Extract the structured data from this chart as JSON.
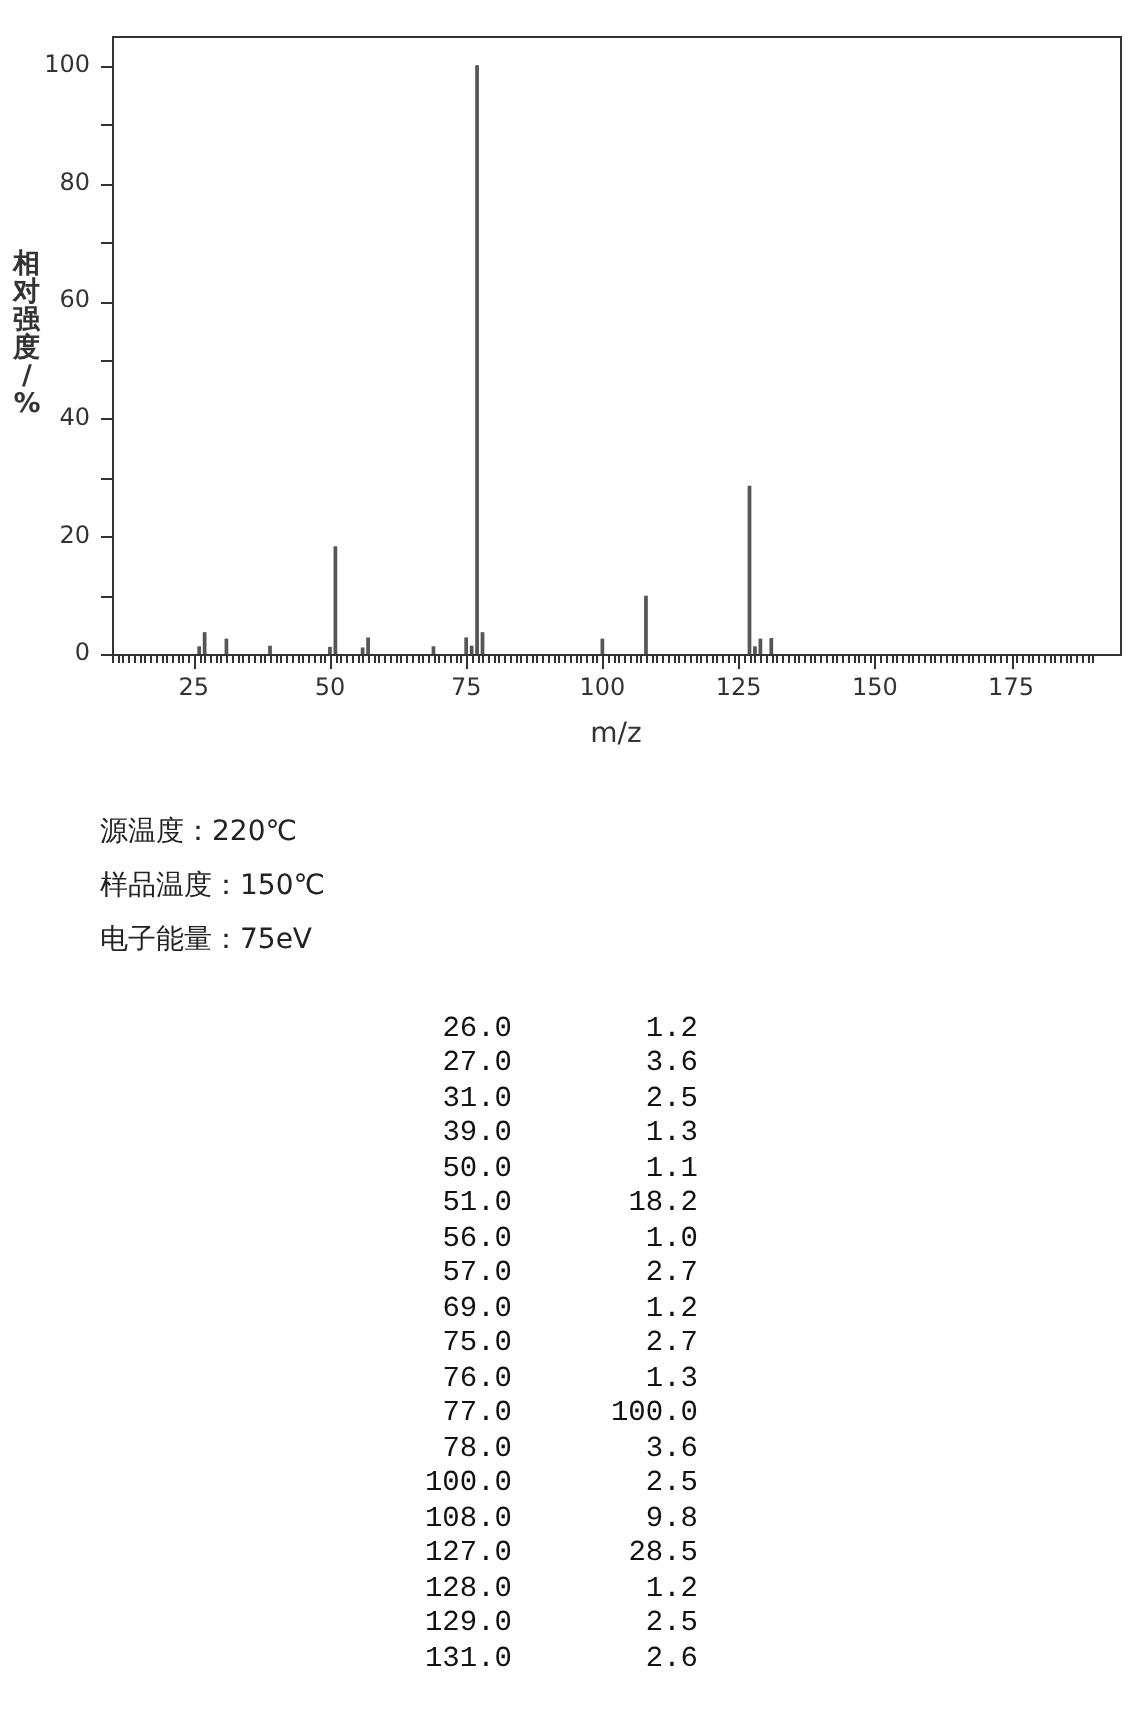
{
  "chart_data": [
    {
      "type": "bar",
      "xlabel": "m/z",
      "ylabel": "相对强度/%",
      "x": [
        26,
        27,
        31,
        39,
        50,
        51,
        56,
        57,
        69,
        75,
        76,
        77,
        78,
        100,
        108,
        127,
        128,
        129,
        131
      ],
      "values": [
        1.2,
        3.6,
        2.5,
        1.3,
        1.1,
        18.2,
        1.0,
        2.7,
        1.2,
        2.7,
        1.3,
        100.0,
        3.6,
        2.5,
        9.8,
        28.5,
        1.2,
        2.5,
        2.6
      ],
      "color": "#555555",
      "xlim": [
        10,
        195
      ],
      "xticks": [
        {
          "value": 10,
          "label": null
        },
        {
          "value": 11,
          "label": null
        },
        {
          "value": 12,
          "label": null
        },
        {
          "value": 13,
          "label": null
        },
        {
          "value": 14,
          "label": null
        },
        {
          "value": 15,
          "label": null
        },
        {
          "value": 16,
          "label": null
        },
        {
          "value": 17,
          "label": null
        },
        {
          "value": 18,
          "label": null
        },
        {
          "value": 19,
          "label": null
        },
        {
          "value": 20,
          "label": null
        },
        {
          "value": 21,
          "label": null
        },
        {
          "value": 22,
          "label": null
        },
        {
          "value": 23,
          "label": null
        },
        {
          "value": 24,
          "label": null
        },
        25,
        {
          "value": 26,
          "label": null
        },
        {
          "value": 27,
          "label": null
        },
        {
          "value": 28,
          "label": null
        },
        {
          "value": 29,
          "label": null
        },
        {
          "value": 30,
          "label": null
        },
        {
          "value": 31,
          "label": null
        },
        {
          "value": 32,
          "label": null
        },
        {
          "value": 33,
          "label": null
        },
        {
          "value": 34,
          "label": null
        },
        {
          "value": 35,
          "label": null
        },
        {
          "value": 36,
          "label": null
        },
        {
          "value": 37,
          "label": null
        },
        {
          "value": 38,
          "label": null
        },
        {
          "value": 39,
          "label": null
        },
        {
          "value": 40,
          "label": null
        },
        {
          "value": 41,
          "label": null
        },
        {
          "value": 42,
          "label": null
        },
        {
          "value": 43,
          "label": null
        },
        {
          "value": 44,
          "label": null
        },
        {
          "value": 45,
          "label": null
        },
        {
          "value": 46,
          "label": null
        },
        {
          "value": 47,
          "label": null
        },
        {
          "value": 48,
          "label": null
        },
        {
          "value": 49,
          "label": null
        },
        50,
        {
          "value": 51,
          "label": null
        },
        {
          "value": 52,
          "label": null
        },
        {
          "value": 53,
          "label": null
        },
        {
          "value": 54,
          "label": null
        },
        {
          "value": 55,
          "label": null
        },
        {
          "value": 56,
          "label": null
        },
        {
          "value": 57,
          "label": null
        },
        {
          "value": 58,
          "label": null
        },
        {
          "value": 59,
          "label": null
        },
        {
          "value": 60,
          "label": null
        },
        {
          "value": 61,
          "label": null
        },
        {
          "value": 62,
          "label": null
        },
        {
          "value": 63,
          "label": null
        },
        {
          "value": 64,
          "label": null
        },
        {
          "value": 65,
          "label": null
        },
        {
          "value": 66,
          "label": null
        },
        {
          "value": 67,
          "label": null
        },
        {
          "value": 68,
          "label": null
        },
        {
          "value": 69,
          "label": null
        },
        {
          "value": 70,
          "label": null
        },
        {
          "value": 71,
          "label": null
        },
        {
          "value": 72,
          "label": null
        },
        {
          "value": 73,
          "label": null
        },
        {
          "value": 74,
          "label": null
        },
        75,
        {
          "value": 76,
          "label": null
        },
        {
          "value": 77,
          "label": null
        },
        {
          "value": 78,
          "label": null
        },
        {
          "value": 79,
          "label": null
        },
        {
          "value": 80,
          "label": null
        },
        {
          "value": 81,
          "label": null
        },
        {
          "value": 82,
          "label": null
        },
        {
          "value": 83,
          "label": null
        },
        {
          "value": 84,
          "label": null
        },
        {
          "value": 85,
          "label": null
        },
        {
          "value": 86,
          "label": null
        },
        {
          "value": 87,
          "label": null
        },
        {
          "value": 88,
          "label": null
        },
        {
          "value": 89,
          "label": null
        },
        {
          "value": 90,
          "label": null
        },
        {
          "value": 91,
          "label": null
        },
        {
          "value": 92,
          "label": null
        },
        {
          "value": 93,
          "label": null
        },
        {
          "value": 94,
          "label": null
        },
        {
          "value": 95,
          "label": null
        },
        {
          "value": 96,
          "label": null
        },
        {
          "value": 97,
          "label": null
        },
        {
          "value": 98,
          "label": null
        },
        {
          "value": 99,
          "label": null
        },
        100,
        {
          "value": 101,
          "label": null
        },
        {
          "value": 102,
          "label": null
        },
        {
          "value": 103,
          "label": null
        },
        {
          "value": 104,
          "label": null
        },
        {
          "value": 105,
          "label": null
        },
        {
          "value": 106,
          "label": null
        },
        {
          "value": 107,
          "label": null
        },
        {
          "value": 108,
          "label": null
        },
        {
          "value": 109,
          "label": null
        },
        {
          "value": 110,
          "label": null
        },
        {
          "value": 111,
          "label": null
        },
        {
          "value": 112,
          "label": null
        },
        {
          "value": 113,
          "label": null
        },
        {
          "value": 114,
          "label": null
        },
        {
          "value": 115,
          "label": null
        },
        {
          "value": 116,
          "label": null
        },
        {
          "value": 117,
          "label": null
        },
        {
          "value": 118,
          "label": null
        },
        {
          "value": 119,
          "label": null
        },
        {
          "value": 120,
          "label": null
        },
        {
          "value": 121,
          "label": null
        },
        {
          "value": 122,
          "label": null
        },
        {
          "value": 123,
          "label": null
        },
        {
          "value": 124,
          "label": null
        },
        125,
        {
          "value": 126,
          "label": null
        },
        {
          "value": 127,
          "label": null
        },
        {
          "value": 128,
          "label": null
        },
        {
          "value": 129,
          "label": null
        },
        {
          "value": 130,
          "label": null
        },
        {
          "value": 131,
          "label": null
        },
        {
          "value": 132,
          "label": null
        },
        {
          "value": 133,
          "label": null
        },
        {
          "value": 134,
          "label": null
        },
        {
          "value": 135,
          "label": null
        },
        {
          "value": 136,
          "label": null
        },
        {
          "value": 137,
          "label": null
        },
        {
          "value": 138,
          "label": null
        },
        {
          "value": 139,
          "label": null
        },
        {
          "value": 140,
          "label": null
        },
        {
          "value": 141,
          "label": null
        },
        {
          "value": 142,
          "label": null
        },
        {
          "value": 143,
          "label": null
        },
        {
          "value": 144,
          "label": null
        },
        {
          "value": 145,
          "label": null
        },
        {
          "value": 146,
          "label": null
        },
        {
          "value": 147,
          "label": null
        },
        {
          "value": 148,
          "label": null
        },
        {
          "value": 149,
          "label": null
        },
        150,
        {
          "value": 151,
          "label": null
        },
        {
          "value": 152,
          "label": null
        },
        {
          "value": 153,
          "label": null
        },
        {
          "value": 154,
          "label": null
        },
        {
          "value": 155,
          "label": null
        },
        {
          "value": 156,
          "label": null
        },
        {
          "value": 157,
          "label": null
        },
        {
          "value": 158,
          "label": null
        },
        {
          "value": 159,
          "label": null
        },
        {
          "value": 160,
          "label": null
        },
        {
          "value": 161,
          "label": null
        },
        {
          "value": 162,
          "label": null
        },
        {
          "value": 163,
          "label": null
        },
        {
          "value": 164,
          "label": null
        },
        {
          "value": 165,
          "label": null
        },
        {
          "value": 166,
          "label": null
        },
        {
          "value": 167,
          "label": null
        },
        {
          "value": 168,
          "label": null
        },
        {
          "value": 169,
          "label": null
        },
        {
          "value": 170,
          "label": null
        },
        {
          "value": 171,
          "label": null
        },
        {
          "value": 172,
          "label": null
        },
        {
          "value": 173,
          "label": null
        },
        {
          "value": 174,
          "label": null
        },
        175,
        {
          "value": 176,
          "label": null
        },
        {
          "value": 177,
          "label": null
        },
        {
          "value": 178,
          "label": null
        },
        {
          "value": 179,
          "label": null
        },
        {
          "value": 180,
          "label": null
        },
        {
          "value": 181,
          "label": null
        },
        {
          "value": 182,
          "label": null
        },
        {
          "value": 183,
          "label": null
        },
        {
          "value": 184,
          "label": null
        },
        {
          "value": 185,
          "label": null
        },
        {
          "value": 186,
          "label": null
        },
        {
          "value": 187,
          "label": null
        },
        {
          "value": 188,
          "label": null
        },
        {
          "value": 189,
          "label": null
        },
        {
          "value": 190,
          "label": null
        }
      ],
      "ylim": [
        0,
        105
      ],
      "yticks": [
        0,
        {
          "value": 10,
          "label": null
        },
        20,
        {
          "value": 30,
          "label": null
        },
        40,
        {
          "value": 50,
          "label": null
        },
        60,
        {
          "value": 70,
          "label": null
        },
        80,
        {
          "value": 90,
          "label": null
        },
        100
      ],
      "annotations": [
        "源温度：220℃",
        "样品温度：150℃",
        "电子能量：75eV"
      ]
    },
    {
      "type": "other",
      "annotations": [
        "26.0",
        "1.2",
        "27.0",
        "3.6",
        "31.0",
        "2.5",
        "39.0",
        "1.3",
        "50.0",
        "1.1",
        "51.0",
        "18.2",
        "56.0",
        "1.0",
        "57.0",
        "2.7",
        "69.0",
        "1.2",
        "75.0",
        "2.7",
        "76.0",
        "1.3",
        "77.0",
        "100.0",
        "78.0",
        "3.6",
        "100.0",
        "2.5",
        "108.0",
        "9.8",
        "127.0",
        "28.5",
        "128.0",
        "1.2",
        "129.0",
        "2.5",
        "131.0",
        "2.6"
      ]
    }
  ]
}
